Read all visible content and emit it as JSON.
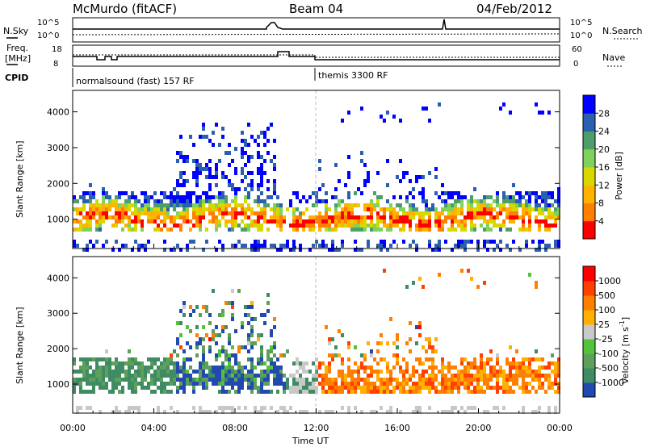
{
  "header": {
    "station": "McMurdo (fitACF)",
    "beam": "Beam 04",
    "date": "04/Feb/2012"
  },
  "top_panels": {
    "nsky_label": "N.Sky",
    "nsearch_label": "N.Search",
    "count_ticks": [
      "10^5",
      "10^0"
    ],
    "freq_label_1": "Freq.",
    "freq_label_2": "[MHz]",
    "freq_ticks": [
      "18",
      "8"
    ],
    "nave_label": "Nave",
    "nave_ticks": [
      "60",
      "0"
    ],
    "cpid_label": "CPID",
    "cpid_modes": [
      "normalsound (fast) 157 RF",
      "themis 3300 RF"
    ]
  },
  "chart_data": [
    {
      "type": "heatmap",
      "panel": "power",
      "ylabel": "Slant Range [km]",
      "yticks": [
        "4000",
        "3000",
        "2000",
        "1000"
      ],
      "ylim": [
        180,
        4600
      ],
      "xlim": [
        0,
        24
      ],
      "colorbar": {
        "label": "Power [dB]",
        "ticks": [
          "28",
          "24",
          "20",
          "16",
          "12",
          "8",
          "4"
        ],
        "colors": [
          "#ff0000",
          "#ff7f00",
          "#ffb200",
          "#d8d800",
          "#7fd25a",
          "#4e9e6c",
          "#2b5fb0",
          "#0000ff"
        ]
      }
    },
    {
      "type": "heatmap",
      "panel": "velocity",
      "ylabel": "Slant Range [km]",
      "yticks": [
        "4000",
        "3000",
        "2000",
        "1000"
      ],
      "ylim": [
        180,
        4600
      ],
      "xlim": [
        0,
        24
      ],
      "xlabel": "Time UT",
      "xticks": [
        "00:00",
        "04:00",
        "08:00",
        "12:00",
        "16:00",
        "20:00",
        "00:00"
      ],
      "colorbar": {
        "label": "Velocity [m s",
        "label_exponent": "-1",
        "label_close": "]",
        "ticks": [
          "1000",
          "500",
          "100",
          "25",
          "-25",
          "-100",
          "-500",
          "-1000"
        ],
        "colors": [
          "#2149b0",
          "#3f8c64",
          "#5ea05a",
          "#52c43a",
          "#c8c8c8",
          "#ffb000",
          "#ff8000",
          "#ff4000",
          "#ff0000"
        ]
      }
    }
  ]
}
